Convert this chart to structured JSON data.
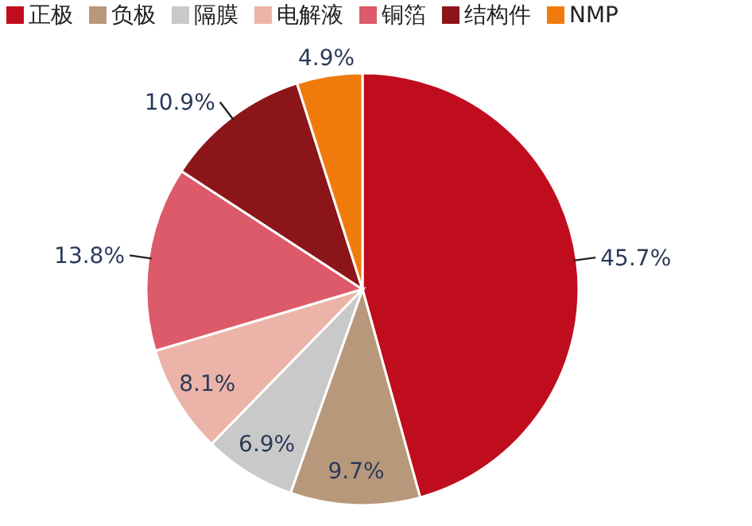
{
  "chart_data": {
    "type": "pie",
    "legend": "top",
    "categories": [
      "正极",
      "负极",
      "隔膜",
      "电解液",
      "铜箔",
      "结构件",
      "NMP"
    ],
    "values": [
      45.7,
      9.7,
      6.9,
      8.1,
      13.8,
      10.9,
      4.9
    ],
    "value_labels": [
      "45.7%",
      "9.7%",
      "6.9%",
      "8.1%",
      "13.8%",
      "10.9%",
      "4.9%"
    ],
    "colors": [
      "#c00d1e",
      "#b8987a",
      "#c9c9c9",
      "#ecb4a8",
      "#dc5a69",
      "#8b1519",
      "#f07b0c"
    ]
  }
}
